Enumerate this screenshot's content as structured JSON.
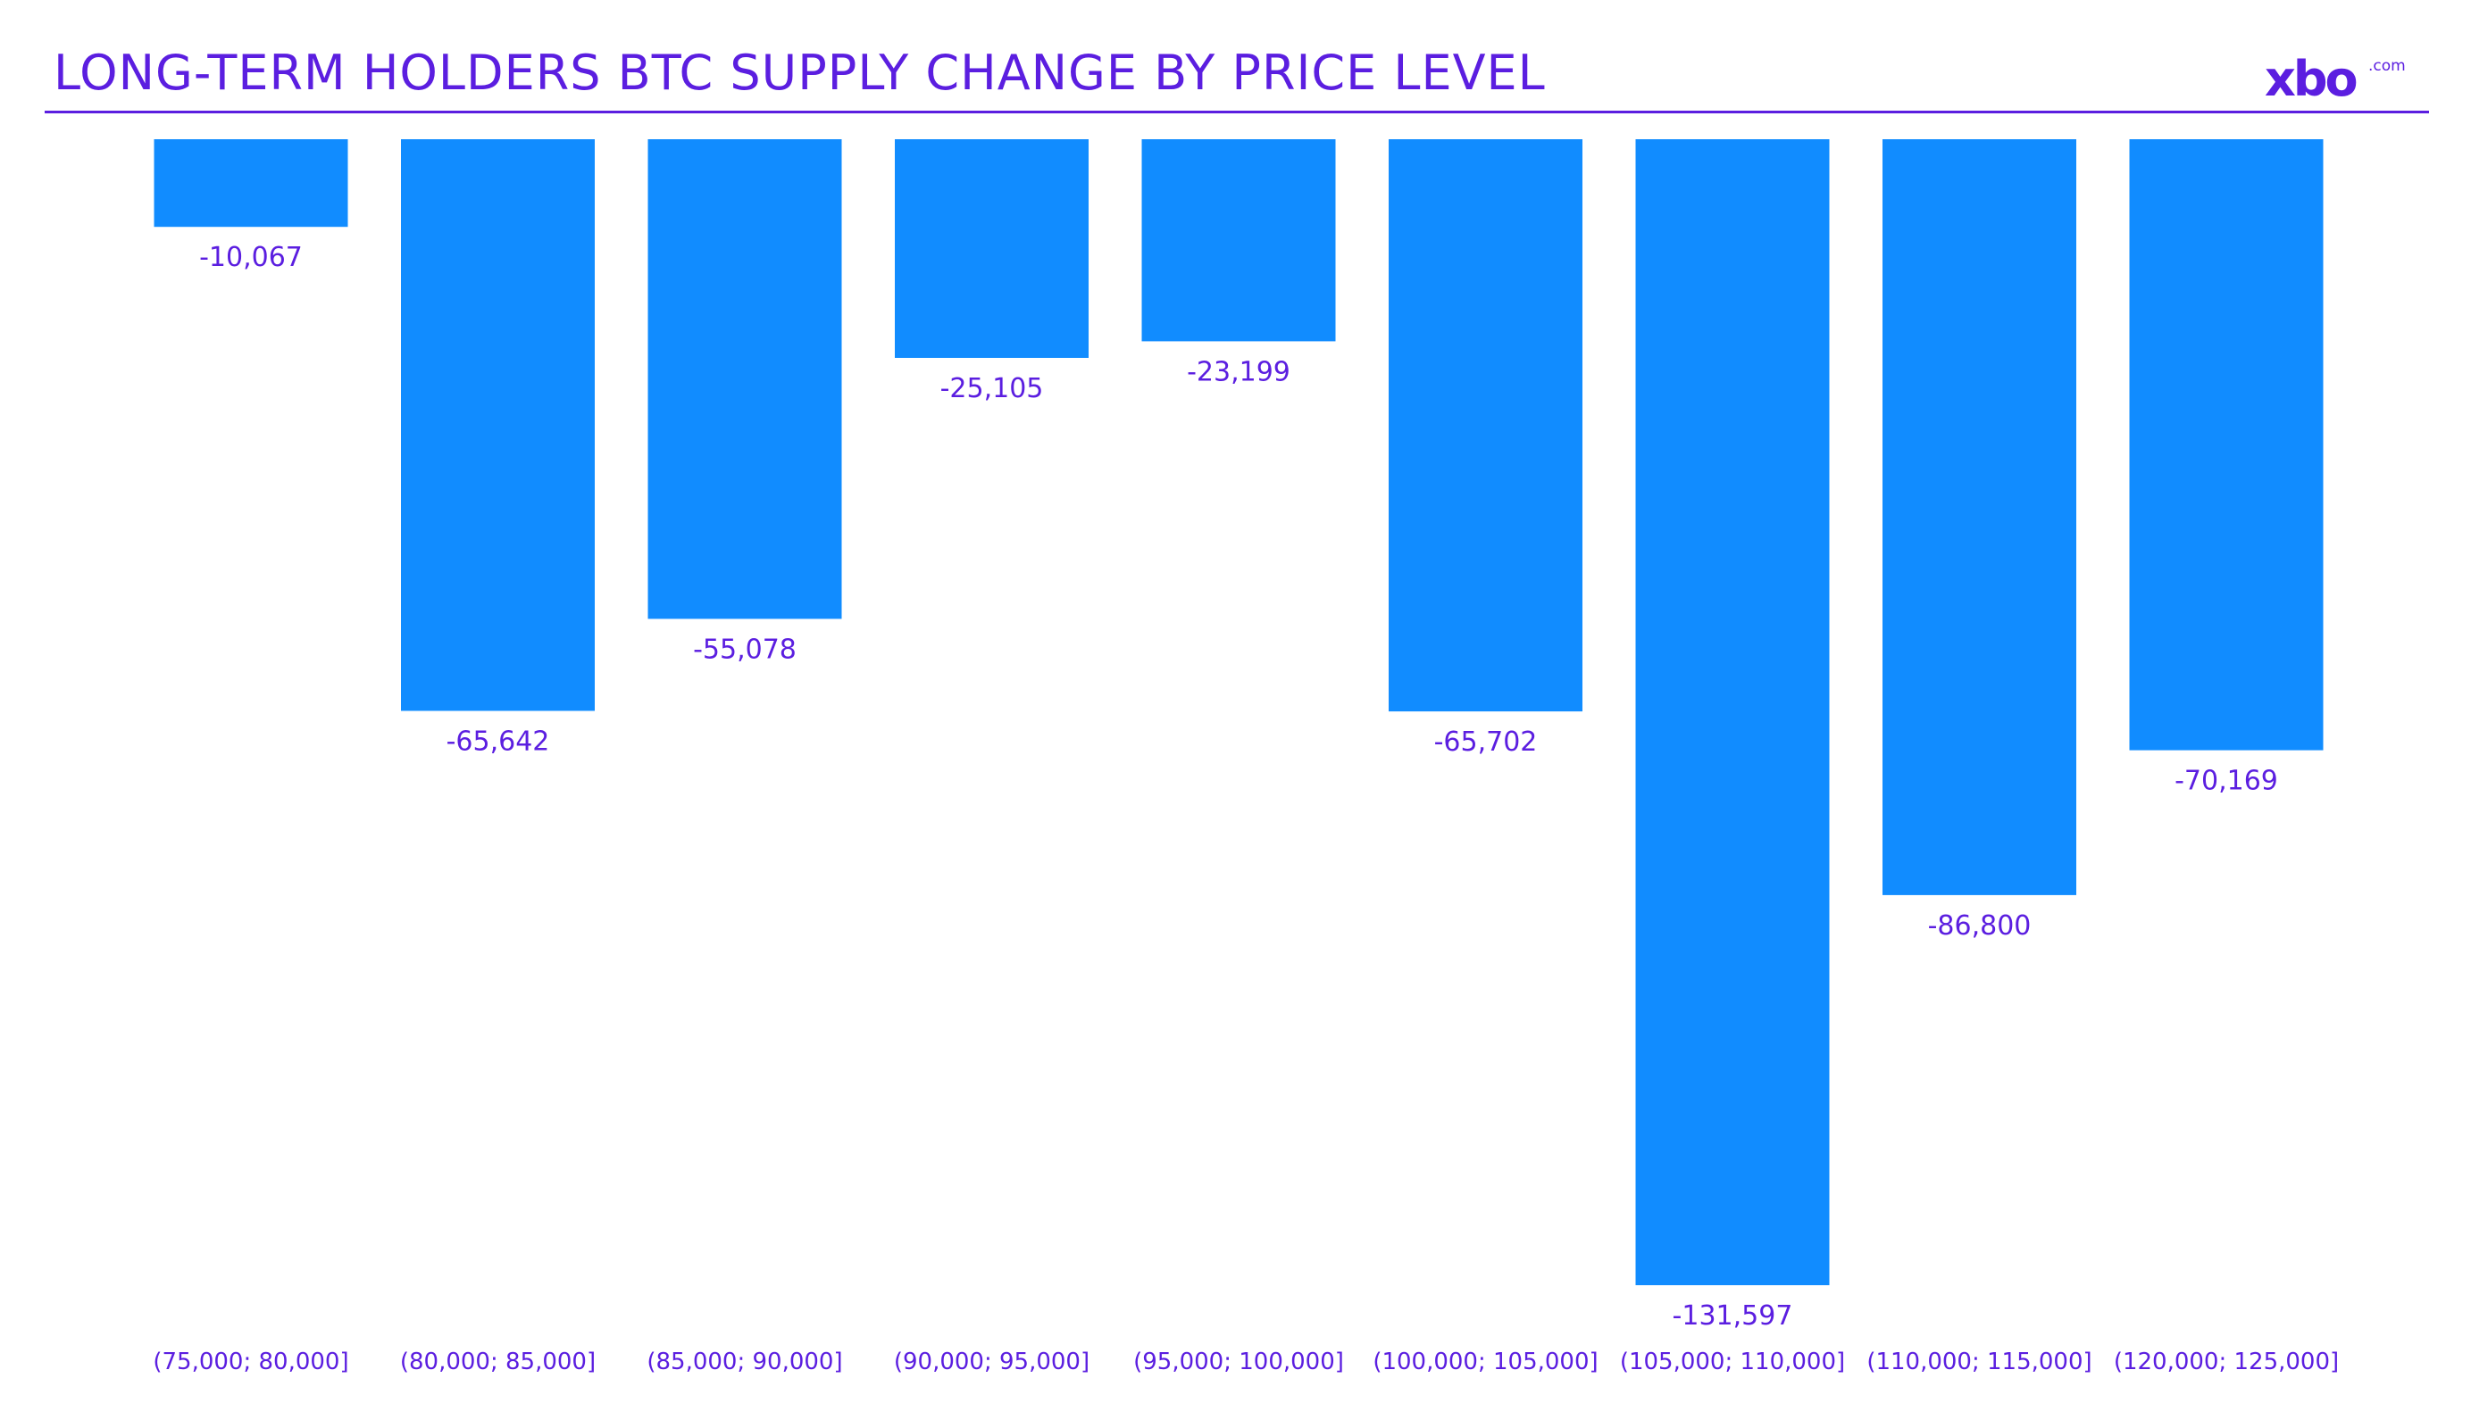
{
  "header": {
    "title": "LONG-TERM HOLDERS BTC SUPPLY CHANGE BY PRICE LEVEL",
    "logo_text": "xbo",
    "logo_superscript": ".com"
  },
  "colors": {
    "bar": "#118cff",
    "accent": "#5b1ee0",
    "background": "#ffffff"
  },
  "chart_data": {
    "type": "bar",
    "categories": [
      "(75,000; 80,000]",
      "(80,000; 85,000]",
      "(85,000; 90,000]",
      "(90,000; 95,000]",
      "(95,000; 100,000]",
      "(100,000; 105,000]",
      "(105,000; 110,000]",
      "(110,000; 115,000]",
      "(120,000; 125,000]"
    ],
    "values": [
      -10067,
      -65642,
      -55078,
      -25105,
      -23199,
      -65702,
      -131597,
      -86800,
      -70169
    ],
    "data_labels": [
      "-10,067",
      "-65,642",
      "-55,078",
      "-25,105",
      "-23,199",
      "-65,702",
      "-131,597",
      "-86,800",
      "-70,169"
    ],
    "title": "LONG-TERM HOLDERS BTC SUPPLY CHANGE BY PRICE LEVEL",
    "xlabel": "",
    "ylabel": "",
    "ylim": [
      -131597,
      0
    ],
    "grid": false,
    "legend": "none"
  }
}
